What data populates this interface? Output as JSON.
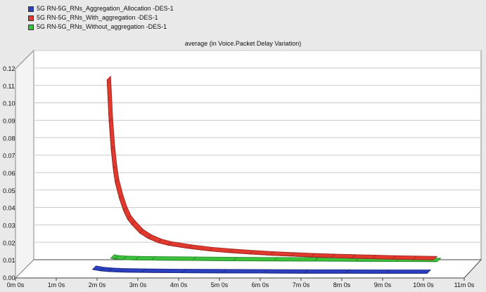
{
  "legend": [
    {
      "label": "5G RN-5G_RNs_Aggregation_Allocation -DES-1",
      "color": "#2b3fbf"
    },
    {
      "label": "5G RN-5G_RNs_With_aggregation -DES-1",
      "color": "#e2392f"
    },
    {
      "label": "5G RN-5G_RNs_Without_aggregation -DES-1",
      "color": "#3bc23b"
    }
  ],
  "chart_data": {
    "type": "line",
    "title": "average (in Voice.Packet Delay Variation)",
    "xlabel": "",
    "ylabel": "",
    "x_ticks": [
      "0m 0s",
      "1m 0s",
      "2m 0s",
      "3m 0s",
      "4m 0s",
      "5m 0s",
      "6m 0s",
      "7m 0s",
      "8m 0s",
      "9m 0s",
      "10m 0s",
      "11m 0s"
    ],
    "y_ticks": [
      "0.00",
      "0.01",
      "0.02",
      "0.03",
      "0.04",
      "0.05",
      "0.06",
      "0.07",
      "0.08",
      "0.09",
      "0.10",
      "0.11",
      "0.12"
    ],
    "xlim": [
      0,
      11
    ],
    "ylim": [
      0,
      0.12
    ],
    "x_unit": "minutes",
    "grid": true,
    "legend_position": "top-left",
    "series": [
      {
        "name": "5G RN-5G_RNs_With_aggregation -DES-1",
        "color": "#e2392f",
        "x": [
          2.0,
          2.05,
          2.1,
          2.15,
          2.2,
          2.3,
          2.4,
          2.5,
          2.6,
          2.8,
          3.0,
          3.25,
          3.5,
          4.0,
          4.5,
          5.0,
          5.5,
          6.0,
          6.5,
          7.0,
          7.5,
          8.0,
          8.5,
          9.0,
          9.5,
          10.0
        ],
        "y": [
          0.108,
          0.084,
          0.068,
          0.057,
          0.049,
          0.04,
          0.033,
          0.028,
          0.025,
          0.02,
          0.017,
          0.0145,
          0.013,
          0.0112,
          0.0098,
          0.0088,
          0.008,
          0.0073,
          0.0068,
          0.0063,
          0.0059,
          0.0056,
          0.0053,
          0.005,
          0.0048,
          0.0046
        ]
      },
      {
        "name": "5G RN-5G_RNs_Without_aggregation -DES-1",
        "color": "#3bc23b",
        "x": [
          2.0,
          2.1,
          2.3,
          2.6,
          3.0,
          4.0,
          5.0,
          6.0,
          7.0,
          8.0,
          9.0,
          10.0
        ],
        "y": [
          0.0035,
          0.003,
          0.0027,
          0.0025,
          0.0024,
          0.0022,
          0.002,
          0.0019,
          0.0018,
          0.0017,
          0.0016,
          0.0015
        ]
      },
      {
        "name": "5G RN-5G_RNs_Aggregation_Allocation -DES-1",
        "color": "#2b3fbf",
        "x": [
          1.8,
          2.0,
          2.2,
          2.5,
          3.0,
          4.0,
          5.0,
          6.0,
          7.0,
          8.0,
          9.0,
          10.0
        ],
        "y": [
          0.0028,
          0.002,
          0.0016,
          0.0013,
          0.0011,
          0.0009,
          0.0008,
          0.0007,
          0.0006,
          0.0006,
          0.0005,
          0.0005
        ]
      }
    ]
  }
}
